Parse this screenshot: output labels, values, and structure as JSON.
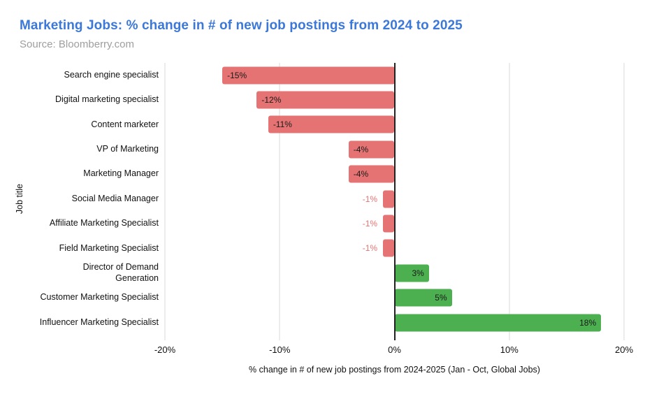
{
  "header": {
    "title": "Marketing Jobs: % change in # of new job postings from 2024 to 2025",
    "source": "Source: Bloomberry.com"
  },
  "chart_data": {
    "type": "bar",
    "orientation": "horizontal",
    "title": "Marketing Jobs: % change in # of new job postings from 2024 to 2025",
    "categories": [
      "Search engine specialist",
      "Digital marketing specialist",
      "Content marketer",
      "VP of Marketing",
      "Marketing Manager",
      "Social Media Manager",
      "Affiliate Marketing Specialist",
      "Field Marketing Specialist",
      "Director of Demand Generation",
      "Customer Marketing Specialist",
      "Influencer Marketing Specialist"
    ],
    "values": [
      -15,
      -12,
      -11,
      -4,
      -4,
      -1,
      -1,
      -1,
      3,
      5,
      18
    ],
    "value_labels": [
      "-15%",
      "-12%",
      "-11%",
      "-4%",
      "-4%",
      "-1%",
      "-1%",
      "-1%",
      "3%",
      "5%",
      "18%"
    ],
    "xlabel": "% change in # of new job postings from 2024-2025 (Jan - Oct, Global Jobs)",
    "ylabel": "Job title",
    "xlim": [
      -20,
      20
    ],
    "xticks": [
      -20,
      -10,
      0,
      10,
      20
    ],
    "xtick_labels": [
      "-20%",
      "-10%",
      "0%",
      "10%",
      "20%"
    ],
    "grid": true,
    "legend": "none",
    "colors": {
      "negative_bar": "#e57373",
      "positive_bar": "#4caf50",
      "zero_axis": "#212121",
      "gridline": "#d9d9d9",
      "inside_label": "#1a1a1a",
      "title": "#3c78d8",
      "source_text": "#9e9e9e"
    }
  }
}
